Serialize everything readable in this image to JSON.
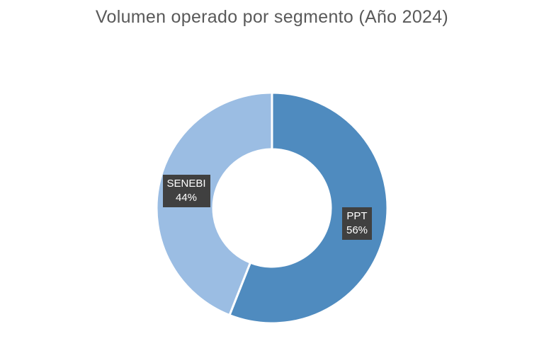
{
  "chart_data": {
    "type": "pie",
    "subtype": "donut",
    "title": "Volumen operado por segmento (Año 2024)",
    "categories": [
      "PPT",
      "SENEBI"
    ],
    "values": [
      56,
      44
    ],
    "unit": "%",
    "value_labels": [
      "56%",
      "44%"
    ],
    "colors": [
      "#4f8bbf",
      "#9bbde3"
    ],
    "label_background": "#404040",
    "legend": "none",
    "start_angle_deg": 0,
    "direction": "clockwise"
  }
}
